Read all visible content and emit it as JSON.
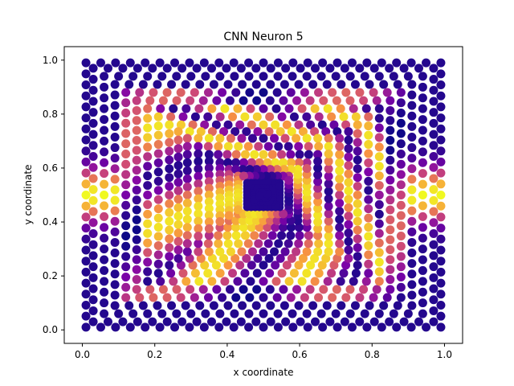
{
  "chart_data": {
    "type": "scatter",
    "title": "CNN Neuron 5",
    "xlabel": "x coordinate",
    "ylabel": "y coordinate",
    "xlim": [
      -0.05,
      1.05
    ],
    "ylim": [
      -0.05,
      1.05
    ],
    "xticks": [
      0.0,
      0.2,
      0.4,
      0.6,
      0.8,
      1.0
    ],
    "yticks": [
      0.0,
      0.2,
      0.4,
      0.6,
      0.8,
      1.0
    ],
    "xtick_labels": [
      "0.0",
      "0.2",
      "0.4",
      "0.6",
      "0.8",
      "1.0"
    ],
    "ytick_labels": [
      "0.0",
      "0.2",
      "0.4",
      "0.6",
      "0.8",
      "1.0"
    ],
    "grid": false,
    "colormap": "plasma",
    "colors": {
      "low": "#0d0887",
      "mid": "#cc4778",
      "high": "#f0f921"
    },
    "pattern": "concentric squares of points centered at (0.5, 0.5); activation mostly low (dark blue) with bright bands near the left/right middle edges and inner rings",
    "rings": [
      {
        "half_size": 0.49,
        "points_per_side": 24
      },
      {
        "half_size": 0.47,
        "points_per_side": 23
      },
      {
        "half_size": 0.44,
        "points_per_side": 22
      },
      {
        "half_size": 0.41,
        "points_per_side": 21
      },
      {
        "half_size": 0.38,
        "points_per_side": 20
      },
      {
        "half_size": 0.35,
        "points_per_side": 19
      },
      {
        "half_size": 0.32,
        "points_per_side": 18
      },
      {
        "half_size": 0.29,
        "points_per_side": 17
      },
      {
        "half_size": 0.26,
        "points_per_side": 16
      },
      {
        "half_size": 0.235,
        "points_per_side": 15
      },
      {
        "half_size": 0.21,
        "points_per_side": 14
      },
      {
        "half_size": 0.18,
        "points_per_side": 13
      },
      {
        "half_size": 0.15,
        "points_per_side": 12
      },
      {
        "half_size": 0.12,
        "points_per_side": 11
      },
      {
        "half_size": 0.095,
        "points_per_side": 10
      },
      {
        "half_size": 0.07,
        "points_per_side": 9
      },
      {
        "half_size": 0.045,
        "points_per_side": 8
      },
      {
        "half_size": 0.025,
        "points_per_side": 6
      },
      {
        "half_size": 0.01,
        "points_per_side": 3
      }
    ]
  }
}
